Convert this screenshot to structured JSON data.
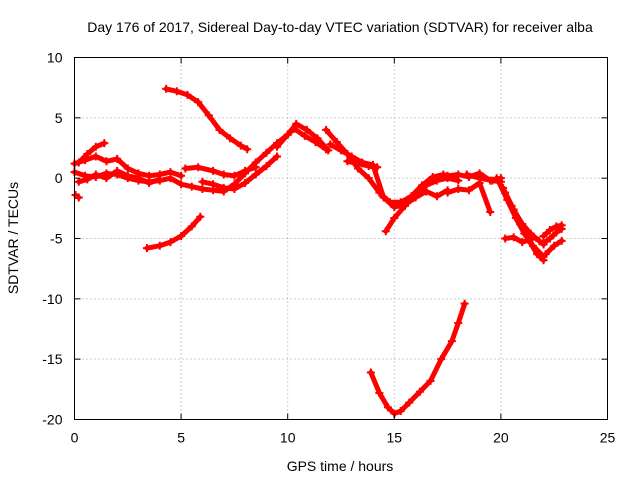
{
  "chart_data": {
    "type": "scatter",
    "title": "Day 176 of 2017, Sidereal Day-to-day VTEC variation (SDTVAR) for receiver alba",
    "xlabel": "GPS time / hours",
    "ylabel": "SDTVAR / TECUs",
    "xlim": [
      0,
      25
    ],
    "ylim": [
      -20,
      10
    ],
    "xticks": [
      0,
      5,
      10,
      15,
      20,
      25
    ],
    "yticks": [
      -20,
      -15,
      -10,
      -5,
      0,
      5,
      10
    ],
    "xtick_labels": [
      "0",
      "5",
      "10",
      "15",
      "20",
      "25"
    ],
    "ytick_labels": [
      "-20",
      "-15",
      "-10",
      "-5",
      "0",
      "5",
      "10"
    ],
    "grid": true,
    "legend": "none",
    "marker": "plus",
    "series_color": "#ff0000",
    "series": [
      {
        "name": "arc-main-low",
        "x": [
          0,
          0.5,
          1,
          1.5,
          2,
          2.5,
          3,
          3.5,
          4,
          4.5,
          5,
          5.5,
          6,
          6.5,
          7,
          7.5,
          8,
          8.5,
          9,
          9.5,
          10,
          10.3,
          10.8,
          11.3,
          11.8
        ],
        "y": [
          0.5,
          0.2,
          0.1,
          0.4,
          0.3,
          0.0,
          -0.2,
          -0.3,
          -0.2,
          0.0,
          -0.5,
          -0.7,
          -0.9,
          -1.0,
          -1.1,
          -0.5,
          0.4,
          1.3,
          2.1,
          2.9,
          3.6,
          4.1,
          3.5,
          3.0,
          2.4
        ]
      },
      {
        "name": "arc-main-high",
        "x": [
          0,
          0.5,
          1,
          1.5,
          2,
          2.5,
          3,
          3.5,
          4,
          4.5,
          5
        ],
        "y": [
          1.2,
          1.5,
          1.8,
          1.4,
          1.6,
          0.8,
          0.4,
          0.2,
          0.3,
          0.5,
          0.2
        ]
      },
      {
        "name": "arc-early-peak",
        "x": [
          0.2,
          0.6,
          1.0,
          1.4
        ],
        "y": [
          1.3,
          2.0,
          2.6,
          2.9
        ]
      },
      {
        "name": "arc-early-low",
        "x": [
          0.2,
          0.6,
          1.0,
          1.5,
          2.0,
          2.5,
          3.0,
          3.5,
          4.0
        ],
        "y": [
          -0.3,
          -0.1,
          0.3,
          0.0,
          0.6,
          0.2,
          0.0,
          -0.4,
          -0.1
        ]
      },
      {
        "name": "point-start",
        "x": [
          0.05,
          0.2
        ],
        "y": [
          -1.4,
          -1.6
        ]
      },
      {
        "name": "arc-morning-high",
        "x": [
          4.3,
          4.8,
          5.3,
          5.8,
          6.3,
          6.8,
          7.3,
          7.8,
          8.1
        ],
        "y": [
          7.4,
          7.2,
          6.9,
          6.3,
          5.2,
          4.0,
          3.3,
          2.7,
          2.4
        ]
      },
      {
        "name": "arc-morning-flat",
        "x": [
          5.2,
          5.8,
          6.5,
          7.0,
          7.5,
          8.0,
          8.5
        ],
        "y": [
          0.8,
          0.9,
          0.6,
          0.3,
          0.2,
          0.6,
          0.9
        ]
      },
      {
        "name": "arc-morning-mid",
        "x": [
          6.0,
          6.5,
          7.0,
          7.5,
          8.0,
          8.5,
          9.0,
          9.5
        ],
        "y": [
          -0.3,
          -0.5,
          -0.8,
          -0.9,
          -0.4,
          0.3,
          1.0,
          1.8
        ]
      },
      {
        "name": "arc-morning-low",
        "x": [
          3.4,
          4.0,
          4.5,
          5.0,
          5.5,
          5.9
        ],
        "y": [
          -5.8,
          -5.6,
          -5.3,
          -4.8,
          -4.0,
          -3.2
        ]
      },
      {
        "name": "arc-noon-peak",
        "x": [
          9.5,
          10.0,
          10.4,
          10.9,
          11.4,
          11.9
        ],
        "y": [
          2.6,
          3.6,
          4.5,
          4.0,
          3.3,
          2.3
        ]
      },
      {
        "name": "arc-afternoon-a",
        "x": [
          11.8,
          12.3,
          12.8,
          13.3,
          13.8,
          14.3,
          14.8,
          15.3,
          15.8,
          16.3,
          16.8,
          17.3,
          17.8
        ],
        "y": [
          4.0,
          3.0,
          2.0,
          0.8,
          0.0,
          -1.2,
          -2.0,
          -2.0,
          -1.5,
          -0.6,
          0.1,
          0.3,
          0.1
        ]
      },
      {
        "name": "arc-afternoon-b",
        "x": [
          12.0,
          12.5,
          13.0,
          13.5,
          14.0,
          14.5,
          15.0,
          15.5,
          16.0,
          16.5,
          17.0,
          17.5
        ],
        "y": [
          2.8,
          2.3,
          1.8,
          1.3,
          1.1,
          -1.6,
          -2.4,
          -2.2,
          -1.6,
          -1.1,
          -1.5,
          -1.0
        ]
      },
      {
        "name": "arc-afternoon-c",
        "x": [
          12.8,
          13.3,
          13.8,
          14.2
        ],
        "y": [
          1.4,
          1.2,
          1.0,
          0.9
        ]
      },
      {
        "name": "arc-afternoon-d",
        "x": [
          14.6,
          15.0,
          15.5,
          16.0,
          16.5,
          17.0,
          17.5,
          18.0
        ],
        "y": [
          -4.4,
          -3.3,
          -2.3,
          -1.3,
          -0.6,
          -0.2,
          0.0,
          -0.2
        ]
      },
      {
        "name": "arc-evening-a",
        "x": [
          17.5,
          18.0,
          18.5,
          19.0,
          19.5,
          20.0
        ],
        "y": [
          0.2,
          0.3,
          0.1,
          0.4,
          -0.2,
          0.0
        ]
      },
      {
        "name": "arc-evening-b",
        "x": [
          17.5,
          18.0,
          18.5,
          19.0,
          19.5
        ],
        "y": [
          -1.2,
          -0.9,
          -1.0,
          -0.4,
          -2.8
        ]
      },
      {
        "name": "arc-evening-c",
        "x": [
          18.4,
          19.0,
          19.6,
          20.0
        ],
        "y": [
          0.3,
          0.0,
          -0.2,
          -0.3
        ]
      },
      {
        "name": "arc-late-a",
        "x": [
          19.8,
          20.2,
          20.6,
          21.0,
          21.4,
          21.8,
          22.0
        ],
        "y": [
          0.0,
          -1.2,
          -2.6,
          -3.8,
          -4.6,
          -5.2,
          -5.5
        ]
      },
      {
        "name": "arc-late-b",
        "x": [
          19.9,
          20.3,
          20.7,
          21.1,
          21.5,
          22.0
        ],
        "y": [
          -0.3,
          -1.8,
          -3.3,
          -4.6,
          -5.6,
          -6.5
        ]
      },
      {
        "name": "arc-late-c",
        "x": [
          20.1,
          20.5,
          20.9,
          21.3,
          21.7,
          22.0
        ],
        "y": [
          -0.8,
          -2.3,
          -3.8,
          -5.1,
          -6.3,
          -6.8
        ]
      },
      {
        "name": "arc-late-d",
        "x": [
          20.2,
          20.6,
          21.0,
          21.4
        ],
        "y": [
          -5.0,
          -4.9,
          -5.3,
          -5.1
        ]
      },
      {
        "name": "arc-late-e",
        "x": [
          22.0,
          22.3,
          22.6,
          22.85
        ],
        "y": [
          -5.4,
          -5.0,
          -4.5,
          -4.2
        ]
      },
      {
        "name": "arc-late-f",
        "x": [
          22.0,
          22.3,
          22.6,
          22.85
        ],
        "y": [
          -4.8,
          -4.3,
          -4.0,
          -3.9
        ]
      },
      {
        "name": "arc-late-g",
        "x": [
          22.1,
          22.5,
          22.85
        ],
        "y": [
          -6.3,
          -5.6,
          -5.2
        ]
      },
      {
        "name": "arc-dip",
        "x": [
          13.9,
          14.3,
          14.7,
          15.0,
          15.3,
          15.7,
          16.2,
          16.7,
          17.2,
          17.7,
          18.0,
          18.3
        ],
        "y": [
          -16.1,
          -17.8,
          -19.0,
          -19.5,
          -19.3,
          -18.6,
          -17.7,
          -16.8,
          -15.0,
          -13.5,
          -12.0,
          -10.4
        ]
      }
    ]
  }
}
